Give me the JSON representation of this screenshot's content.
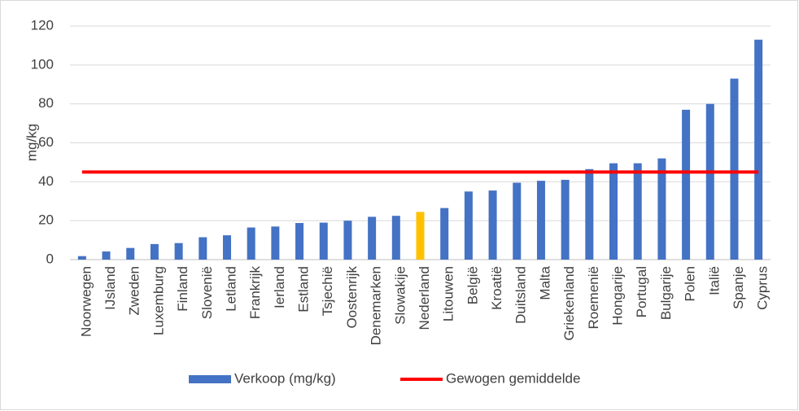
{
  "chart_data": {
    "type": "bar",
    "y_label": "mg/kg",
    "categories": [
      "Noorwegen",
      "IJsland",
      "Zweden",
      "Luxemburg",
      "Finland",
      "Slovenië",
      "Letland",
      "Frankrijk",
      "Ierland",
      "Estland",
      "Tsjechië",
      "Oostenrijk",
      "Denemarken",
      "Slowakije",
      "Nederland",
      "Litouwen",
      "België",
      "Kroatië",
      "Duitsland",
      "Malta",
      "Griekenland",
      "Roemenië",
      "Hongarije",
      "Portugal",
      "Bulgarije",
      "Polen",
      "Italië",
      "Spanje",
      "Cyprus"
    ],
    "series": [
      {
        "name": "Verkoop (mg/kg)",
        "type": "bar",
        "color": "#4472c4",
        "colors": [
          "#4472c4",
          "#4472c4",
          "#4472c4",
          "#4472c4",
          "#4472c4",
          "#4472c4",
          "#4472c4",
          "#4472c4",
          "#4472c4",
          "#4472c4",
          "#4472c4",
          "#4472c4",
          "#4472c4",
          "#4472c4",
          "#ffc000",
          "#4472c4",
          "#4472c4",
          "#4472c4",
          "#4472c4",
          "#4472c4",
          "#4472c4",
          "#4472c4",
          "#4472c4",
          "#4472c4",
          "#4472c4",
          "#4472c4",
          "#4472c4",
          "#4472c4",
          "#4472c4"
        ],
        "values": [
          1.8,
          4.2,
          6,
          8,
          8.5,
          11.5,
          12.5,
          16.5,
          17,
          18.8,
          19,
          20,
          22,
          22.5,
          24.5,
          26.5,
          35,
          35.5,
          39.5,
          40.5,
          41,
          46.5,
          49.5,
          49.5,
          52,
          77,
          80,
          93,
          113
        ]
      },
      {
        "name": "Gewogen gemiddelde",
        "type": "line",
        "color": "#ff0000",
        "values": [
          45,
          45,
          45,
          45,
          45,
          45,
          45,
          45,
          45,
          45,
          45,
          45,
          45,
          45,
          45,
          45,
          45,
          45,
          45,
          45,
          45,
          45,
          45,
          45,
          45,
          45,
          45,
          45,
          45
        ]
      }
    ],
    "ylim": [
      0,
      120
    ],
    "yticks": [
      0,
      20,
      40,
      60,
      80,
      100,
      120
    ],
    "grid": true
  }
}
